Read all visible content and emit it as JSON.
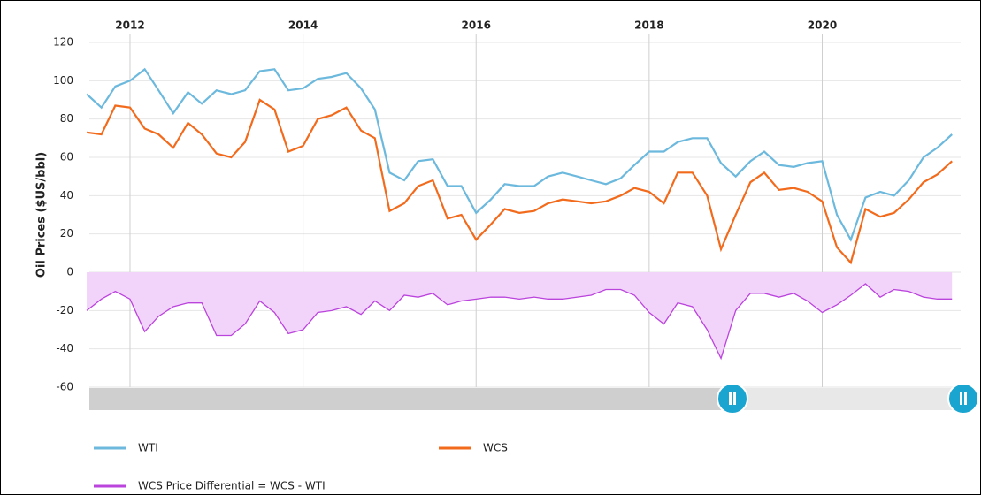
{
  "chart_data": {
    "type": "line",
    "ylabel": "Oil Prices ($US/bbl)",
    "x": [
      2011.5,
      2011.67,
      2011.83,
      2012,
      2012.17,
      2012.33,
      2012.5,
      2012.67,
      2012.83,
      2013,
      2013.17,
      2013.33,
      2013.5,
      2013.67,
      2013.83,
      2014,
      2014.17,
      2014.33,
      2014.5,
      2014.67,
      2014.83,
      2015,
      2015.17,
      2015.33,
      2015.5,
      2015.67,
      2015.83,
      2016,
      2016.17,
      2016.33,
      2016.5,
      2016.67,
      2016.83,
      2017,
      2017.17,
      2017.33,
      2017.5,
      2017.67,
      2017.83,
      2018,
      2018.17,
      2018.33,
      2018.5,
      2018.67,
      2018.83,
      2019,
      2019.17,
      2019.33,
      2019.5,
      2019.67,
      2019.83,
      2020,
      2020.17,
      2020.33,
      2020.5,
      2020.67,
      2020.83,
      2021,
      2021.17,
      2021.33,
      2021.5
    ],
    "series": [
      {
        "name": "WTI",
        "color": "#6cb9dd",
        "values": [
          93,
          86,
          97,
          100,
          106,
          95,
          83,
          94,
          88,
          95,
          93,
          95,
          105,
          106,
          95,
          96,
          101,
          102,
          104,
          96,
          85,
          52,
          48,
          58,
          59,
          45,
          45,
          31,
          38,
          46,
          45,
          45,
          50,
          52,
          50,
          48,
          46,
          49,
          56,
          63,
          63,
          68,
          70,
          70,
          57,
          50,
          58,
          63,
          56,
          55,
          57,
          58,
          30,
          17,
          39,
          42,
          40,
          48,
          60,
          65,
          72
        ]
      },
      {
        "name": "WCS",
        "color": "#f26b1d",
        "values": [
          73,
          72,
          87,
          86,
          75,
          72,
          65,
          78,
          72,
          62,
          60,
          68,
          90,
          85,
          63,
          66,
          80,
          82,
          86,
          74,
          70,
          32,
          36,
          45,
          48,
          28,
          30,
          17,
          25,
          33,
          31,
          32,
          36,
          38,
          37,
          36,
          37,
          40,
          44,
          42,
          36,
          52,
          52,
          40,
          12,
          30,
          47,
          52,
          43,
          44,
          42,
          37,
          13,
          5,
          33,
          29,
          31,
          38,
          47,
          51,
          58
        ]
      },
      {
        "name": "WCS Price Differential = WCS - WTI",
        "color": "#bb44dd",
        "fill": "#f2d4fa",
        "area": true,
        "values": [
          -20,
          -14,
          -10,
          -14,
          -31,
          -23,
          -18,
          -16,
          -16,
          -33,
          -33,
          -27,
          -15,
          -21,
          -32,
          -30,
          -21,
          -20,
          -18,
          -22,
          -15,
          -20,
          -12,
          -13,
          -11,
          -17,
          -15,
          -14,
          -13,
          -13,
          -14,
          -13,
          -14,
          -14,
          -13,
          -12,
          -9,
          -9,
          -12,
          -21,
          -27,
          -16,
          -18,
          -30,
          -45,
          -20,
          -11,
          -11,
          -13,
          -11,
          -15,
          -21,
          -17,
          -12,
          -6,
          -13,
          -9,
          -10,
          -13,
          -14,
          -14
        ]
      }
    ],
    "xlim": [
      2011.53,
      2021.6
    ],
    "xticks": [
      2012,
      2014,
      2016,
      2018,
      2020
    ],
    "ylim": [
      -60,
      120
    ],
    "yticks": [
      -60,
      -40,
      -20,
      0,
      20,
      40,
      60,
      80,
      100,
      120
    ],
    "grid": true
  }
}
